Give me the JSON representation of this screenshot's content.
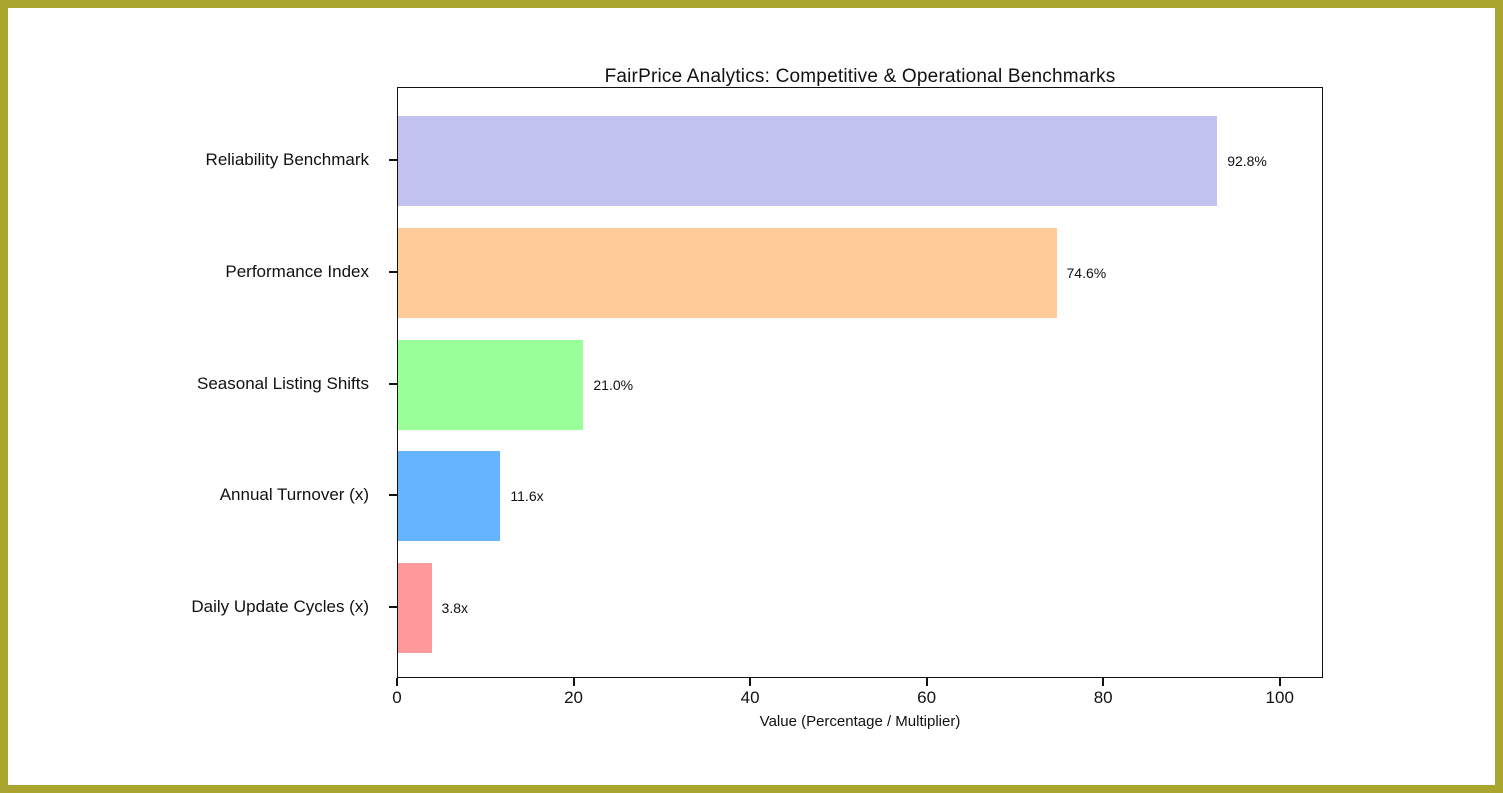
{
  "frame": {
    "border_color": "#a9a52e",
    "background_color": "#ffffff"
  },
  "chart_data": {
    "type": "bar",
    "orientation": "horizontal",
    "title": "FairPrice Analytics: Competitive & Operational Benchmarks",
    "xlabel": "Value (Percentage / Multiplier)",
    "ylabel": "",
    "categories": [
      "Reliability Benchmark",
      "Performance Index",
      "Seasonal Listing Shifts",
      "Annual Turnover (x)",
      "Daily Update Cycles (x)"
    ],
    "values": [
      92.8,
      74.6,
      21.0,
      11.6,
      3.8
    ],
    "value_labels": [
      "92.8%",
      "74.6%",
      "21.0%",
      "11.6x",
      "3.8x"
    ],
    "bar_colors": [
      "#c2c2f0",
      "#ffcc99",
      "#99ff99",
      "#66b3ff",
      "#ff9999"
    ],
    "xlim": [
      0,
      104.9
    ],
    "xticks": [
      0,
      20,
      40,
      60,
      80,
      100
    ],
    "grid": false,
    "legend": null,
    "axis_color": "#111111",
    "text_color": "#111111"
  }
}
